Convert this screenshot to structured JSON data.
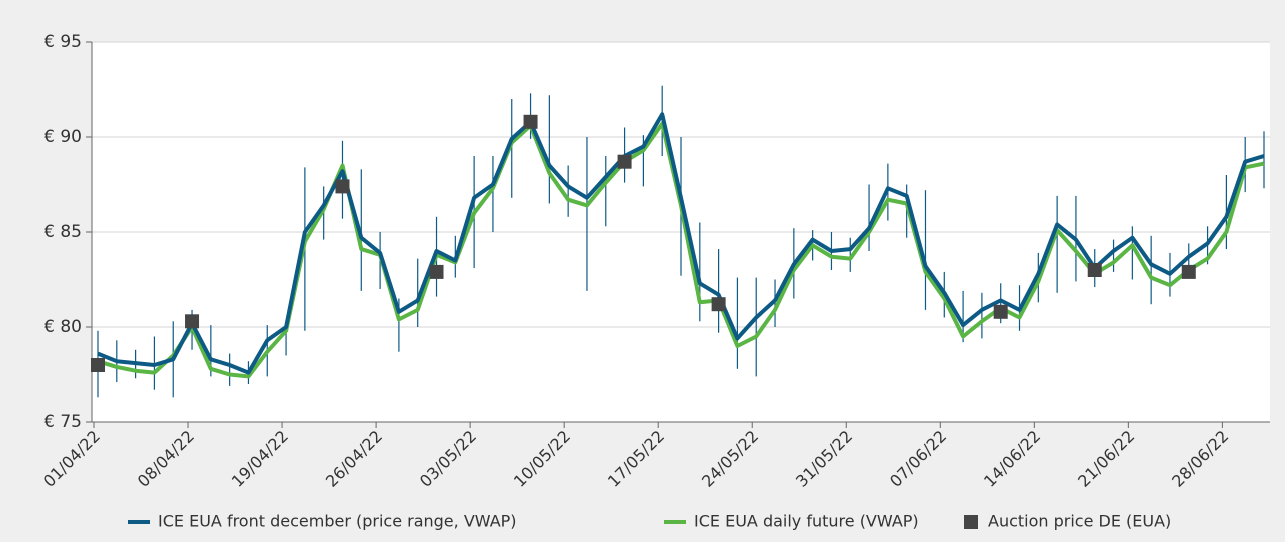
{
  "chart_data": {
    "type": "line",
    "categories": [
      "01/04/22",
      null,
      null,
      null,
      null,
      "08/04/22",
      null,
      null,
      null,
      null,
      "19/04/22",
      null,
      null,
      null,
      null,
      "26/04/22",
      null,
      null,
      null,
      null,
      "03/05/22",
      null,
      null,
      null,
      null,
      "10/05/22",
      null,
      null,
      null,
      null,
      "17/05/22",
      null,
      null,
      null,
      null,
      "24/05/22",
      null,
      null,
      null,
      null,
      "31/05/22",
      null,
      null,
      null,
      null,
      "07/06/22",
      null,
      null,
      null,
      null,
      "14/06/22",
      null,
      null,
      null,
      null,
      "21/06/22",
      null,
      null,
      null,
      null,
      "28/06/22",
      null,
      null
    ],
    "series": [
      {
        "name": "ICE EUA front december (price range, VWAP)",
        "color": "#0d5a85",
        "values": [
          78.6,
          78.2,
          78.1,
          78.0,
          78.3,
          80.2,
          78.3,
          78.0,
          77.6,
          79.3,
          80.0,
          85.0,
          86.4,
          88.2,
          84.7,
          83.9,
          80.8,
          81.4,
          84.0,
          83.5,
          86.8,
          87.5,
          89.9,
          90.8,
          88.5,
          87.4,
          86.8,
          87.9,
          89.0,
          89.5,
          91.2,
          86.8,
          82.3,
          81.7,
          79.4,
          80.5,
          81.4,
          83.3,
          84.6,
          84.0,
          84.1,
          85.2,
          87.3,
          86.9,
          83.2,
          81.8,
          80.1,
          80.9,
          81.4,
          80.9,
          82.8,
          85.4,
          84.6,
          83.1,
          84.0,
          84.7,
          83.3,
          82.8,
          83.7,
          84.4,
          85.8,
          88.7,
          89.0
        ],
        "low": [
          76.3,
          77.1,
          77.3,
          76.7,
          76.3,
          78.8,
          77.4,
          76.9,
          77.0,
          77.4,
          78.5,
          79.8,
          84.6,
          85.7,
          81.9,
          82.0,
          78.7,
          80.0,
          81.6,
          82.6,
          83.1,
          85.0,
          86.8,
          89.9,
          86.5,
          85.8,
          81.9,
          85.3,
          87.6,
          87.4,
          89.0,
          82.7,
          80.3,
          79.7,
          77.8,
          77.4,
          80.0,
          81.5,
          83.5,
          83.0,
          82.9,
          84.0,
          85.6,
          84.7,
          80.9,
          80.5,
          79.2,
          79.4,
          80.2,
          79.8,
          81.3,
          81.8,
          82.4,
          82.1,
          82.9,
          82.5,
          81.2,
          81.6,
          82.7,
          83.3,
          84.1,
          87.1,
          87.3
        ],
        "high": [
          79.8,
          79.3,
          78.8,
          79.5,
          80.3,
          80.9,
          80.1,
          78.6,
          78.2,
          80.1,
          80.3,
          88.4,
          87.4,
          89.8,
          88.3,
          85.0,
          81.5,
          83.6,
          85.8,
          84.8,
          89.0,
          89.0,
          92.0,
          92.3,
          92.2,
          88.5,
          90.0,
          89.0,
          90.5,
          90.1,
          92.7,
          90.0,
          85.5,
          84.1,
          82.6,
          82.6,
          82.5,
          85.2,
          85.1,
          85.0,
          84.7,
          87.5,
          88.6,
          87.5,
          87.2,
          82.9,
          81.9,
          81.8,
          82.3,
          82.2,
          83.9,
          86.9,
          86.9,
          84.1,
          84.6,
          85.3,
          84.8,
          83.9,
          84.4,
          85.3,
          88.0,
          90.0,
          90.3
        ]
      },
      {
        "name": "ICE EUA daily future (VWAP)",
        "color": "#5ab545",
        "values": [
          78.2,
          77.9,
          77.7,
          77.6,
          78.5,
          80.0,
          77.8,
          77.5,
          77.4,
          78.7,
          79.8,
          84.5,
          86.2,
          88.5,
          84.1,
          83.8,
          80.4,
          80.9,
          83.8,
          83.4,
          86.0,
          87.3,
          89.7,
          90.6,
          88.1,
          86.7,
          86.4,
          87.6,
          88.7,
          89.3,
          90.7,
          86.4,
          81.3,
          81.4,
          79.0,
          79.5,
          80.9,
          83.0,
          84.3,
          83.7,
          83.6,
          85.0,
          86.7,
          86.5,
          82.9,
          81.5,
          79.5,
          80.3,
          81.0,
          80.5,
          82.4,
          85.1,
          84.0,
          82.8,
          83.4,
          84.3,
          82.6,
          82.2,
          83.0,
          83.6,
          85.0,
          88.4,
          88.6
        ]
      },
      {
        "name": "Auction price DE (EUA)",
        "color": "#454545",
        "values": [
          78.0,
          null,
          null,
          null,
          null,
          80.3,
          null,
          null,
          null,
          null,
          null,
          null,
          null,
          87.4,
          null,
          null,
          null,
          null,
          82.9,
          null,
          null,
          null,
          null,
          90.8,
          null,
          null,
          null,
          null,
          88.7,
          null,
          null,
          null,
          null,
          81.2,
          null,
          null,
          null,
          null,
          null,
          null,
          null,
          null,
          null,
          null,
          null,
          null,
          null,
          null,
          80.8,
          null,
          null,
          null,
          null,
          83.0,
          null,
          null,
          null,
          null,
          82.9,
          null,
          null,
          null,
          null
        ]
      }
    ],
    "ylim": [
      75,
      95
    ],
    "yticks": [
      {
        "value": 75,
        "label": "€ 75"
      },
      {
        "value": 80,
        "label": "€ 80"
      },
      {
        "value": 85,
        "label": "€ 85"
      },
      {
        "value": 90,
        "label": "€ 90"
      },
      {
        "value": 95,
        "label": "€ 95"
      }
    ],
    "grid": true,
    "legend": "bottom"
  }
}
